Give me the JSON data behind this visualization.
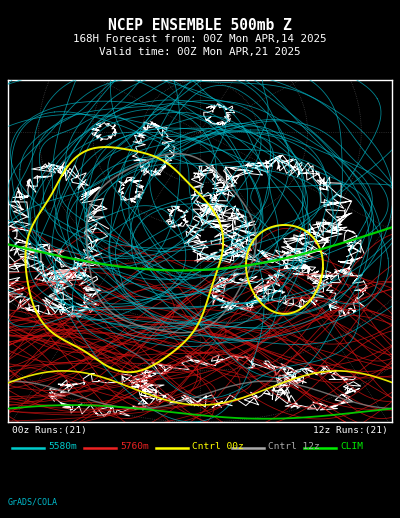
{
  "title_line1": "NCEP ENSEMBLE 500mb Z",
  "title_line2": "168H Forecast from: 00Z Mon APR,14 2025",
  "title_line3": "Valid time: 00Z Mon APR,21 2025",
  "background_color": "#000000",
  "map_background": "#000000",
  "border_color": "#ffffff",
  "title_color": "#ffffff",
  "label_00z": "00z Runs:(21)",
  "label_12z": "12z Runs:(21)",
  "legend_items": [
    {
      "label": "5580m",
      "color": "#00CCCC",
      "lw": 1.8
    },
    {
      "label": "5760m",
      "color": "#EE2222",
      "lw": 1.8
    },
    {
      "label": "Cntrl 00z",
      "color": "#FFFF00",
      "lw": 1.8
    },
    {
      "label": "Cntrl 12z",
      "color": "#AAAAAA",
      "lw": 1.8
    },
    {
      "label": "CLIM",
      "color": "#00EE00",
      "lw": 1.8
    }
  ],
  "grads_label": "GrADS/COLA",
  "fig_width": 4.0,
  "fig_height": 5.18,
  "dpi": 100,
  "cyan_color": "#00BBCC",
  "red_color": "#CC1111",
  "yellow_color": "#FFFF00",
  "gray_color": "#888888",
  "green_color": "#00DD00",
  "white_color": "#FFFFFF",
  "dotted_gray": "#888888"
}
